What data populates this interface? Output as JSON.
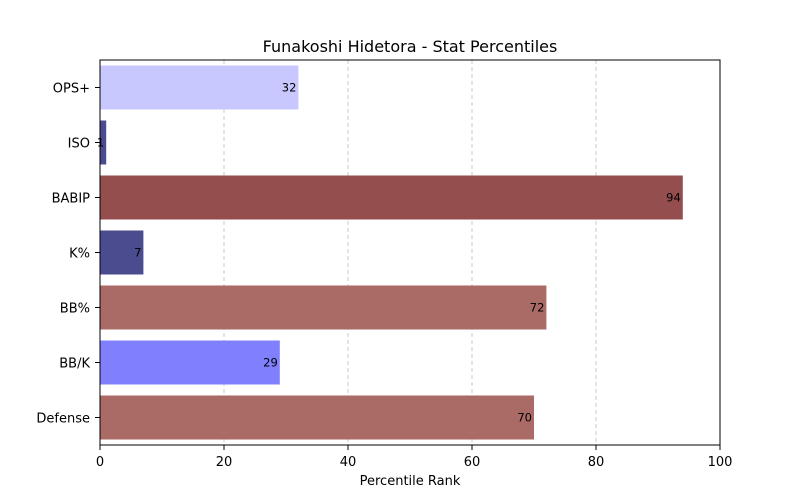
{
  "chart_data": {
    "type": "bar",
    "orientation": "horizontal",
    "title": "Funakoshi Hidetora - Stat Percentiles",
    "xlabel": "Percentile Rank",
    "ylabel": "",
    "xlim": [
      0,
      100
    ],
    "xticks": [
      0,
      20,
      40,
      60,
      80,
      100
    ],
    "grid": "x-dashed",
    "categories": [
      "OPS+",
      "ISO",
      "BABIP",
      "K%",
      "BB%",
      "BB/K",
      "Defense"
    ],
    "values": [
      32,
      1,
      94,
      7,
      72,
      29,
      70
    ],
    "colors": [
      "#c8c8ff",
      "#4b4b90",
      "#944e4e",
      "#4b4b90",
      "#aa6a66",
      "#8080ff",
      "#aa6a66"
    ]
  }
}
